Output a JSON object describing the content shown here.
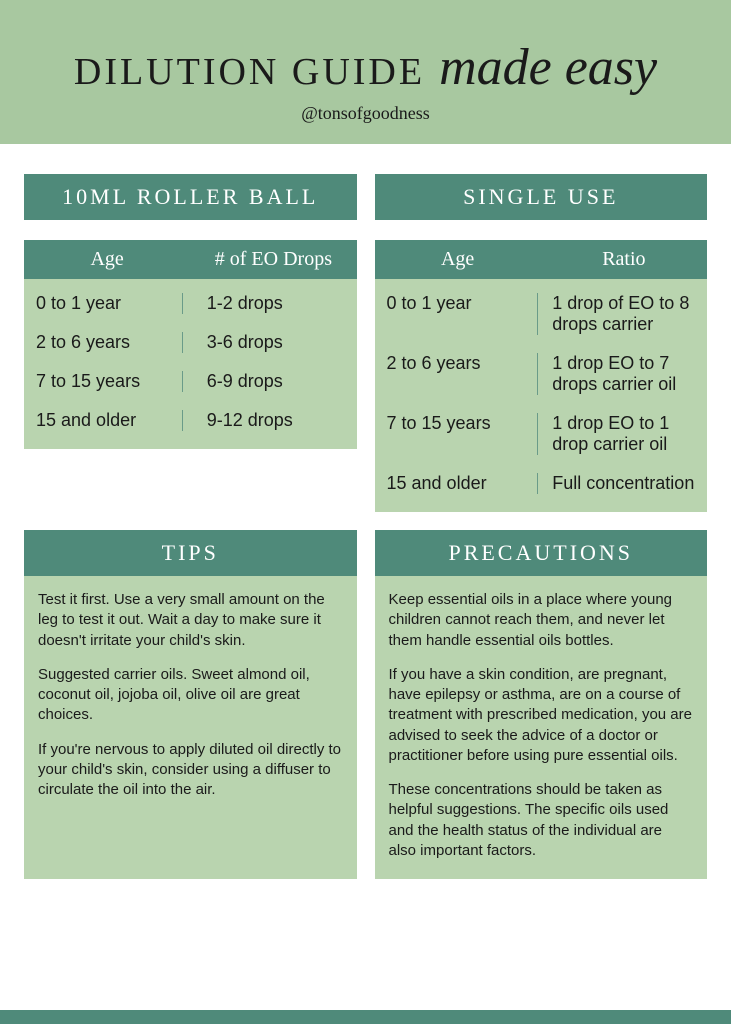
{
  "colors": {
    "header_bg": "#a8c8a0",
    "panel_bg": "#b9d4af",
    "bar_bg": "#4f8a7a",
    "bar_text": "#ffffff",
    "body_text": "#1a1a1a",
    "divider": "#6a9b89",
    "page_bg": "#ffffff"
  },
  "typography": {
    "title_main_pt": 38,
    "title_script_pt": 52,
    "section_title_pt": 22,
    "table_header_pt": 20,
    "table_cell_pt": 18,
    "body_pt": 15
  },
  "header": {
    "title_main": "DILUTION GUIDE",
    "title_script": "made easy",
    "handle": "@tonsofgoodness"
  },
  "sections": {
    "roller": {
      "title": "10ML ROLLER BALL",
      "columns": [
        "Age",
        "# of EO Drops"
      ],
      "rows": [
        [
          "0 to 1 year",
          "1-2 drops"
        ],
        [
          "2 to 6 years",
          "3-6 drops"
        ],
        [
          "7 to 15 years",
          "6-9 drops"
        ],
        [
          "15 and older",
          "9-12 drops"
        ]
      ]
    },
    "single": {
      "title": "SINGLE USE",
      "columns": [
        "Age",
        "Ratio"
      ],
      "rows": [
        [
          "0 to 1 year",
          "1 drop of EO to 8 drops carrier"
        ],
        [
          "2 to 6 years",
          "1 drop EO to 7 drops carrier oil"
        ],
        [
          "7 to 15 years",
          "1 drop EO to 1 drop carrier oil"
        ],
        [
          "15 and older",
          "Full concentration"
        ]
      ]
    },
    "tips": {
      "title": "TIPS",
      "paragraphs": [
        "Test it first. Use a very small amount on the leg to test it out. Wait a day to make sure it doesn't irritate your child's skin.",
        "Suggested carrier oils. Sweet almond oil, coconut oil, jojoba oil, olive oil are great choices.",
        "If you're nervous to apply diluted oil directly to your child's skin, consider using a diffuser to circulate the oil into the air."
      ]
    },
    "precautions": {
      "title": "PRECAUTIONS",
      "paragraphs": [
        "Keep essential oils in a place where young children cannot reach them, and never let them handle essential oils bottles.",
        "If you have a skin condition, are pregnant, have epilepsy or asthma, are on a course of treatment with prescribed medication, you are advised to seek the advice of a doctor or practitioner before using pure essential oils.",
        "These concentrations  should be taken as helpful suggestions. The specific oils  used and the health status of the individual are also important  factors."
      ]
    }
  }
}
